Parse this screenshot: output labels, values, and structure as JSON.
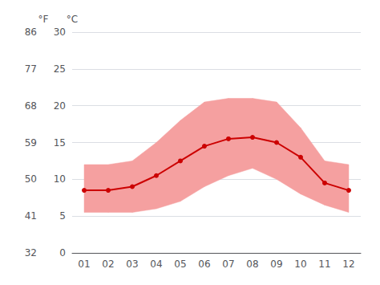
{
  "chart_data": {
    "type": "line",
    "categories": [
      "01",
      "02",
      "03",
      "04",
      "05",
      "06",
      "07",
      "08",
      "09",
      "10",
      "11",
      "12"
    ],
    "series": [
      {
        "type": "line",
        "color": "#cc0000",
        "marker": "circle",
        "values": [
          8.5,
          8.5,
          9.0,
          10.5,
          12.5,
          14.5,
          15.5,
          15.7,
          15.0,
          13.0,
          9.5,
          8.5
        ]
      }
    ],
    "band": {
      "color": "#f5a0a0",
      "low": [
        5.5,
        5.5,
        5.5,
        6.0,
        7.0,
        9.0,
        10.5,
        11.5,
        10.0,
        8.0,
        6.5,
        5.5
      ],
      "high": [
        12.0,
        12.0,
        12.5,
        15.0,
        18.0,
        20.5,
        21.0,
        21.0,
        20.5,
        17.0,
        12.5,
        12.0
      ]
    },
    "ylabel": "°C",
    "ylim": [
      0,
      30
    ],
    "yticks": [
      0,
      5,
      10,
      15,
      20,
      25,
      30
    ],
    "y2label": "°F",
    "y2lim": [
      32,
      86
    ],
    "y2ticks": [
      32,
      41,
      50,
      59,
      68,
      77,
      86
    ],
    "grid": true
  }
}
